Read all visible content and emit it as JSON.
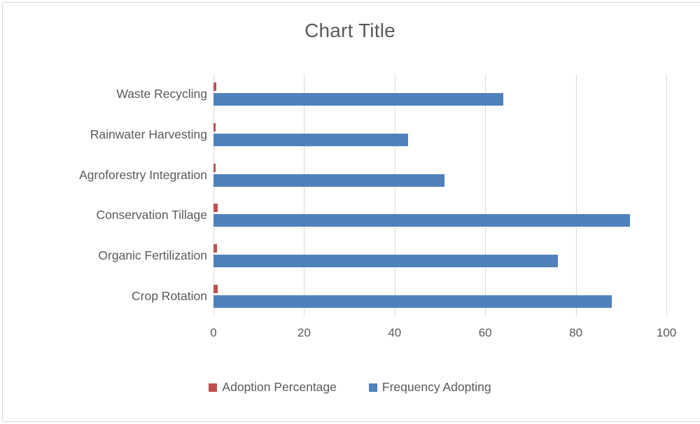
{
  "chart_data": {
    "type": "bar",
    "orientation": "horizontal",
    "title": "Chart Title",
    "categories": [
      "Waste Recycling",
      "Rainwater Harvesting",
      "Agroforestry Integration",
      "Conservation Tillage",
      "Organic Fertilization",
      "Crop Rotation"
    ],
    "series": [
      {
        "name": "Adoption Percentage",
        "color": "#C0504D",
        "values": [
          0.64,
          0.43,
          0.51,
          0.92,
          0.76,
          0.88
        ]
      },
      {
        "name": "Frequency Adopting",
        "color": "#4F81BD",
        "values": [
          64,
          43,
          51,
          92,
          76,
          88
        ]
      }
    ],
    "xlabel": "",
    "ylabel": "",
    "xlim": [
      0,
      100
    ],
    "xticks": [
      0,
      20,
      40,
      60,
      80,
      100
    ],
    "grid": true,
    "legend_position": "bottom"
  },
  "styles": {
    "text_color": "#595959",
    "gridline_color": "#D9D9D9",
    "frame_border_color": "#D6D6D6",
    "background": "#FFFFFF"
  }
}
